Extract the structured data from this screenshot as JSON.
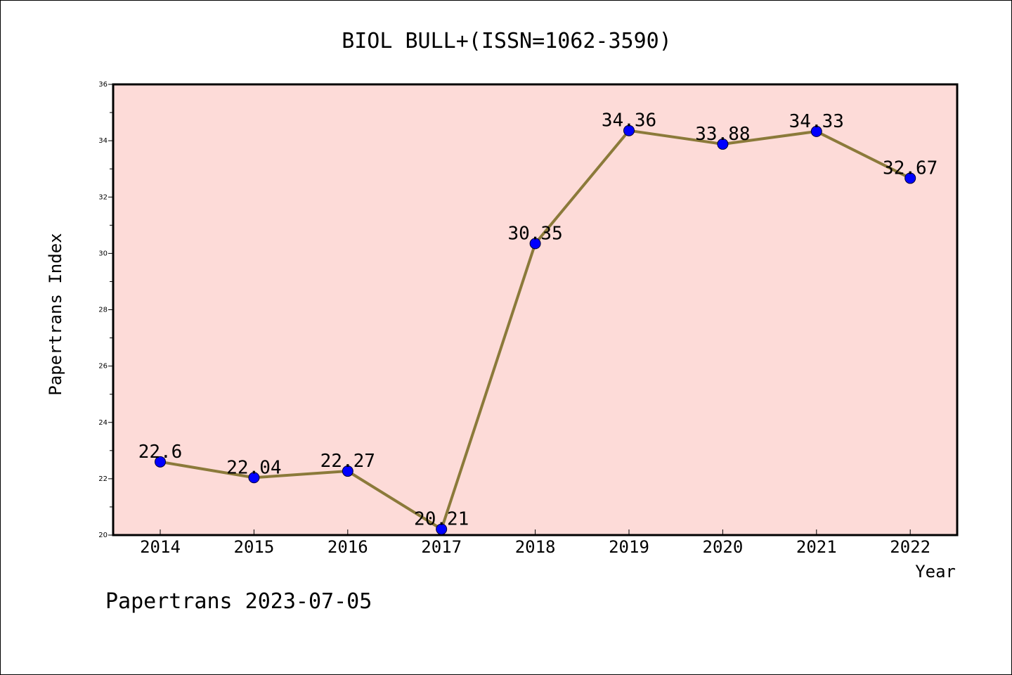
{
  "chart_data": {
    "type": "line",
    "title": "BIOL BULL+(ISSN=1062-3590)",
    "xlabel": "Year",
    "ylabel": "Papertrans Index",
    "categories": [
      "2014",
      "2015",
      "2016",
      "2017",
      "2018",
      "2019",
      "2020",
      "2021",
      "2022"
    ],
    "series": [
      {
        "values": [
          22.6,
          22.04,
          22.27,
          20.21,
          30.35,
          34.36,
          33.88,
          34.33,
          32.67
        ],
        "data_labels": [
          "22.6",
          "22.04",
          "22.27",
          "20.21",
          "30.35",
          "34.36",
          "33.88",
          "34.33",
          "32.67"
        ]
      }
    ],
    "ylim": [
      20,
      36
    ],
    "y_ticks": [
      "20",
      "22",
      "24",
      "26",
      "28",
      "30",
      "32",
      "34",
      "36"
    ],
    "grid": false,
    "colors": {
      "plot_background": "#fddbd8",
      "line": "#8b7a3a",
      "marker": "#0000ff"
    }
  },
  "footer": {
    "text": "Papertrans 2023-07-05"
  }
}
